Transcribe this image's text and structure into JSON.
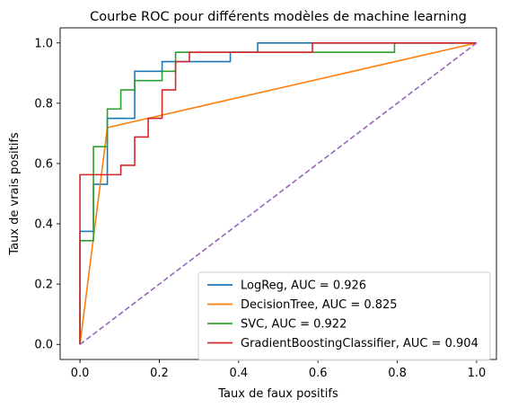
{
  "chart_data": {
    "type": "line",
    "title": "Courbe ROC pour différents modèles de machine learning",
    "xlabel": "Taux de faux positifs",
    "ylabel": "Taux de vrais positifs",
    "xlim": [
      -0.05,
      1.05
    ],
    "ylim": [
      -0.05,
      1.05
    ],
    "xticks": [
      0.0,
      0.2,
      0.4,
      0.6,
      0.8,
      1.0
    ],
    "xtick_labels": [
      "0.0",
      "0.2",
      "0.4",
      "0.6",
      "0.8",
      "1.0"
    ],
    "yticks": [
      0.0,
      0.2,
      0.4,
      0.6,
      0.8,
      1.0
    ],
    "ytick_labels": [
      "0.0",
      "0.2",
      "0.4",
      "0.6",
      "0.8",
      "1.0"
    ],
    "grid": false,
    "legend_position": "lower-right",
    "series": [
      {
        "name": "LogReg, AUC = 0.926",
        "color": "#1f77b4",
        "style": "solid",
        "x": [
          0,
          0,
          0.034,
          0.034,
          0.069,
          0.069,
          0.138,
          0.138,
          0.207,
          0.207,
          0.379,
          0.379,
          0.448,
          0.448,
          1.0
        ],
        "y": [
          0,
          0.375,
          0.375,
          0.531,
          0.531,
          0.75,
          0.75,
          0.906,
          0.906,
          0.938,
          0.938,
          0.969,
          0.969,
          1.0,
          1.0
        ]
      },
      {
        "name": "DecisionTree, AUC = 0.825",
        "color": "#ff7f0e",
        "style": "solid",
        "x": [
          0,
          0.069,
          1.0
        ],
        "y": [
          0,
          0.719,
          1.0
        ]
      },
      {
        "name": "SVC, AUC = 0.922",
        "color": "#2ca02c",
        "style": "solid",
        "x": [
          0,
          0,
          0.034,
          0.034,
          0.069,
          0.069,
          0.103,
          0.103,
          0.138,
          0.138,
          0.207,
          0.207,
          0.241,
          0.241,
          0.793,
          0.793,
          1.0
        ],
        "y": [
          0,
          0.344,
          0.344,
          0.656,
          0.656,
          0.781,
          0.781,
          0.844,
          0.844,
          0.875,
          0.875,
          0.906,
          0.906,
          0.969,
          0.969,
          1.0,
          1.0
        ]
      },
      {
        "name": "GradientBoostingClassifier, AUC = 0.904",
        "color": "#d62728",
        "style": "solid",
        "x": [
          0,
          0,
          0.103,
          0.103,
          0.138,
          0.138,
          0.172,
          0.172,
          0.207,
          0.207,
          0.241,
          0.241,
          0.276,
          0.276,
          0.586,
          0.586,
          1.0
        ],
        "y": [
          0,
          0.563,
          0.563,
          0.594,
          0.594,
          0.688,
          0.688,
          0.75,
          0.75,
          0.844,
          0.844,
          0.938,
          0.938,
          0.969,
          0.969,
          1.0,
          1.0
        ]
      },
      {
        "color": "#9467bd",
        "style": "dashed",
        "x": [
          0,
          1.0
        ],
        "y": [
          0,
          1.0
        ]
      }
    ]
  }
}
